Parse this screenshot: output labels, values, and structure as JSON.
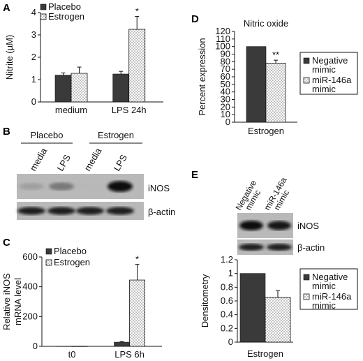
{
  "panels": {
    "A": {
      "label": "A",
      "chart_data": {
        "type": "bar",
        "ylabel": "Nitrite (µM)",
        "ylim": [
          0,
          4
        ],
        "yticks": [
          "0",
          "1",
          "2",
          "3",
          "4"
        ],
        "categories": [
          "medium",
          "LPS 24h"
        ],
        "series": [
          {
            "name": "Placebo",
            "values": [
              1.2,
              1.25
            ],
            "errors": [
              0.1,
              0.12
            ],
            "style": "dark"
          },
          {
            "name": "Estrogen",
            "values": [
              1.28,
              3.25
            ],
            "errors": [
              0.28,
              0.58
            ],
            "style": "dots"
          }
        ],
        "annotations": [
          {
            "text": "*",
            "category": 1,
            "series": 1
          }
        ],
        "legend": "top-left"
      }
    },
    "B": {
      "label": "B",
      "groups": [
        "Placebo",
        "Estrogen"
      ],
      "lanes": [
        "media",
        "LPS",
        "media",
        "LPS"
      ],
      "bands": [
        "iNOS",
        "β-actin"
      ],
      "inos_intensity": [
        0.25,
        0.45,
        0.05,
        0.95
      ],
      "actin_intensity": [
        0.85,
        0.85,
        0.85,
        0.85
      ]
    },
    "C": {
      "label": "C",
      "chart_data": {
        "type": "bar",
        "ylabel_lines": [
          "Relative iNOS",
          "mRNA level"
        ],
        "ylim": [
          0,
          600
        ],
        "yticks": [
          "0",
          "200",
          "400",
          "600"
        ],
        "categories": [
          "t0",
          "LPS 6h"
        ],
        "series": [
          {
            "name": "Placebo",
            "values": [
              1,
              28
            ],
            "errors": [
              0,
              5
            ],
            "style": "dark"
          },
          {
            "name": "Estrogen",
            "values": [
              1,
              445
            ],
            "errors": [
              0,
              105
            ],
            "style": "dots"
          }
        ],
        "annotations": [
          {
            "text": "*",
            "category": 1,
            "series": 1
          }
        ],
        "legend": "top-left"
      }
    },
    "D": {
      "label": "D",
      "chart_data": {
        "type": "bar",
        "title": "Nitric oxide",
        "ylabel": "Percent expression",
        "ylim": [
          0,
          120
        ],
        "yticks": [
          "0",
          "10",
          "20",
          "30",
          "40",
          "50",
          "60",
          "70",
          "80",
          "90",
          "100",
          "110",
          "120"
        ],
        "categories": [
          "Estrogen"
        ],
        "series": [
          {
            "name": "Negative mimic",
            "values": [
              100
            ],
            "errors": [
              0
            ],
            "style": "dark"
          },
          {
            "name": "miR-146a mimic",
            "values": [
              78
            ],
            "errors": [
              4
            ],
            "style": "dots"
          }
        ],
        "annotations": [
          {
            "text": "**",
            "category": 0,
            "series": 1
          }
        ],
        "legend": "right"
      }
    },
    "E": {
      "label": "E",
      "lanes": [
        "Negative mimic",
        "miR-146a mimic"
      ],
      "bands": [
        "iNOS",
        "β-actin"
      ],
      "chart_data": {
        "type": "bar",
        "ylabel": "Densitometry",
        "ylim": [
          0,
          1.2
        ],
        "yticks": [
          "0",
          "0.2",
          "0.4",
          "0.6",
          "0.8",
          "1",
          "1.2"
        ],
        "categories": [
          "Estrogen"
        ],
        "series": [
          {
            "name": "Negative mimic",
            "values": [
              1.0
            ],
            "errors": [
              0
            ],
            "style": "dark"
          },
          {
            "name": "miR-146a mimic",
            "values": [
              0.65
            ],
            "errors": [
              0.1
            ],
            "style": "dots"
          }
        ],
        "legend": "right"
      }
    }
  }
}
